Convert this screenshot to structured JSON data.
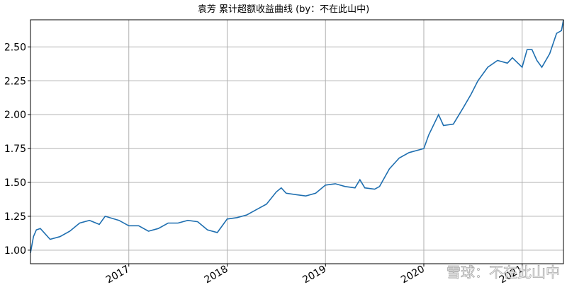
{
  "chart_data": {
    "type": "line",
    "title": "袁芳 累计超额收益曲线 (by：不在此山中)",
    "watermark": "雪球：不在此山中",
    "x": [
      2016.0,
      2016.03,
      2016.06,
      2016.1,
      2016.2,
      2016.3,
      2016.4,
      2016.5,
      2016.6,
      2016.7,
      2016.76,
      2016.9,
      2017.0,
      2017.1,
      2017.2,
      2017.3,
      2017.4,
      2017.5,
      2017.6,
      2017.7,
      2017.8,
      2017.9,
      2018.0,
      2018.1,
      2018.2,
      2018.3,
      2018.4,
      2018.5,
      2018.55,
      2018.6,
      2018.7,
      2018.8,
      2018.9,
      2019.0,
      2019.1,
      2019.2,
      2019.3,
      2019.35,
      2019.4,
      2019.5,
      2019.55,
      2019.65,
      2019.75,
      2019.85,
      2020.0,
      2020.05,
      2020.15,
      2020.2,
      2020.3,
      2020.4,
      2020.48,
      2020.55,
      2020.65,
      2020.75,
      2020.85,
      2020.9,
      2021.0,
      2021.05,
      2021.1,
      2021.15,
      2021.2,
      2021.28,
      2021.35,
      2021.4,
      2021.42
    ],
    "series": [
      {
        "name": "累计超额收益",
        "color": "#1f6fb0",
        "values": [
          0.98,
          1.1,
          1.15,
          1.16,
          1.08,
          1.1,
          1.14,
          1.2,
          1.22,
          1.19,
          1.25,
          1.22,
          1.18,
          1.18,
          1.14,
          1.16,
          1.2,
          1.2,
          1.22,
          1.21,
          1.15,
          1.13,
          1.23,
          1.24,
          1.26,
          1.3,
          1.34,
          1.43,
          1.46,
          1.42,
          1.41,
          1.4,
          1.42,
          1.48,
          1.49,
          1.47,
          1.46,
          1.52,
          1.46,
          1.45,
          1.47,
          1.6,
          1.68,
          1.72,
          1.75,
          1.85,
          2.0,
          1.92,
          1.93,
          2.05,
          2.15,
          2.25,
          2.35,
          2.4,
          2.38,
          2.42,
          2.35,
          2.48,
          2.48,
          2.4,
          2.35,
          2.45,
          2.6,
          2.62,
          2.7
        ]
      }
    ],
    "xlim": [
      2016.0,
      2021.42
    ],
    "xticks": [
      2017,
      2018,
      2019,
      2020,
      2021
    ],
    "ylim": [
      0.9,
      2.7
    ],
    "yticks": [
      {
        "value": 1,
        "label": "1.00"
      },
      {
        "value": 1.25,
        "label": "1.25"
      },
      {
        "value": 1.5,
        "label": "1.50"
      },
      {
        "value": 1.75,
        "label": "1.75"
      },
      {
        "value": 2,
        "label": "2.00"
      },
      {
        "value": 2.25,
        "label": "2.25"
      },
      {
        "value": 2.5,
        "label": "2.50"
      }
    ],
    "grid": true
  }
}
